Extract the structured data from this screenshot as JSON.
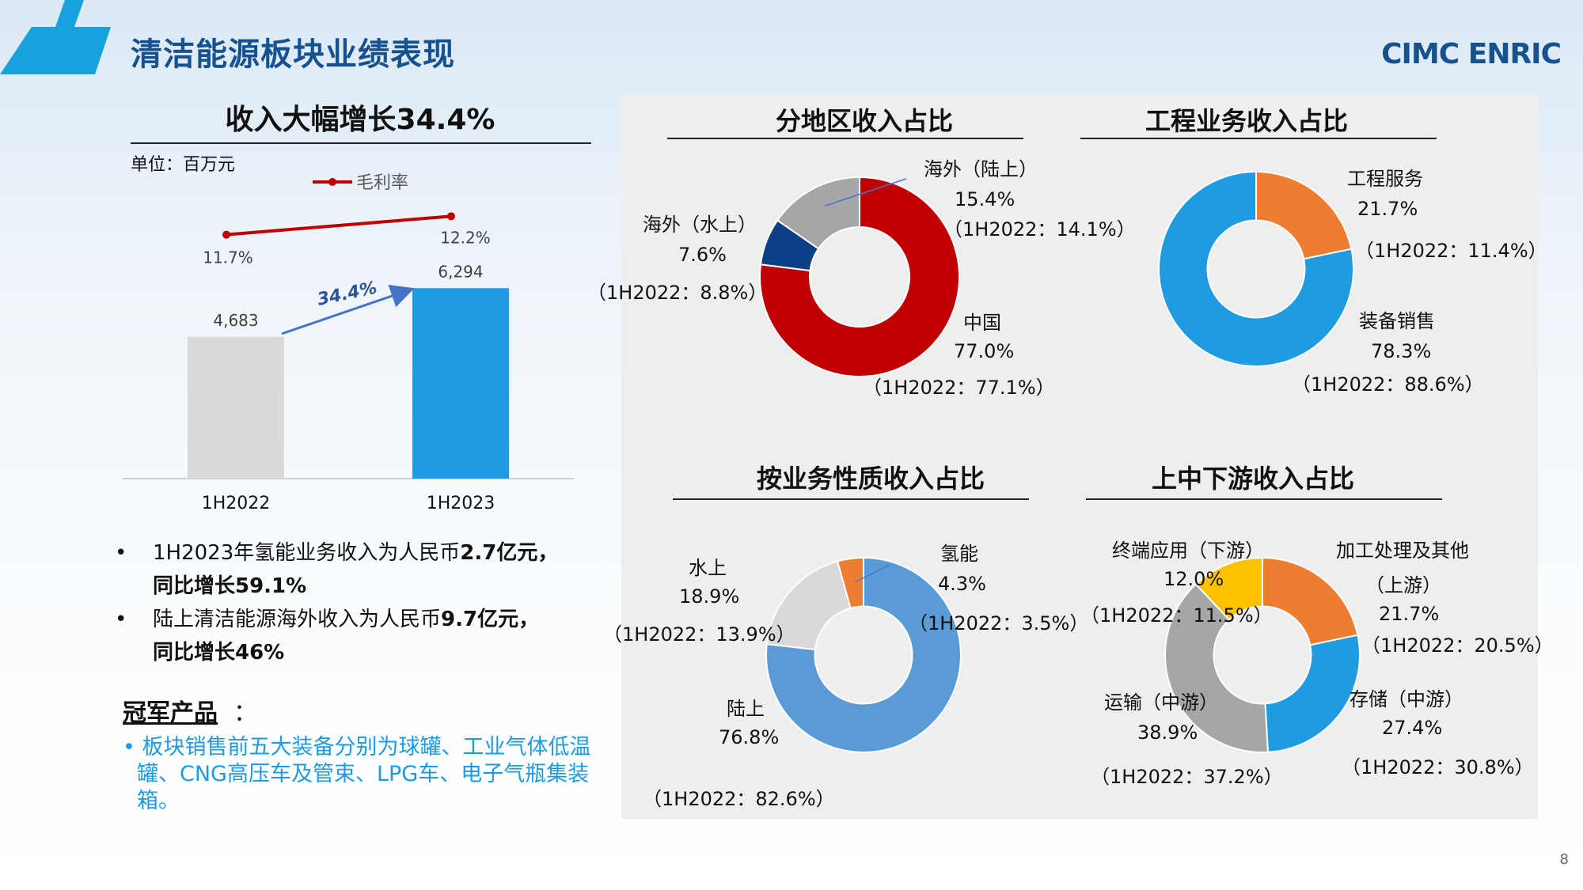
{
  "header": {
    "title": "清洁能源板块业绩表现",
    "brand": "CIMC ENRIC"
  },
  "left": {
    "headline": "收入大幅增长34.4%",
    "unit": "单位：百万元",
    "bullets": [
      {
        "text_a": "1H2023年氢能业务收入为人民币",
        "text_b": "2.7亿元，",
        "text_c": "同比增长59.1%"
      },
      {
        "text_a": "陆上清洁能源海外收入为人民币",
        "text_b": "9.7亿元，",
        "text_c": "同比增长46%"
      }
    ],
    "champion_title": "冠军产品",
    "champion_colon": "：",
    "champion_text": "• 板块销售前五大装备分别为球罐、工业气体低温罐、CNG高压车及管束、LPG车、电子气瓶集装箱。"
  },
  "chart_data": [
    {
      "type": "bar",
      "title": "收入大幅增长34.4%",
      "unit": "单位：百万元",
      "categories": [
        "1H2022",
        "1H2023"
      ],
      "series": [
        {
          "name": "",
          "values": [
            4683,
            6294
          ],
          "labels": [
            "4,683",
            "6,294"
          ],
          "colors": [
            "#d9d9d9",
            "#1f9be1"
          ]
        },
        {
          "name": "毛利率",
          "type": "line",
          "values": [
            11.7,
            12.2
          ],
          "labels": [
            "11.7%",
            "12.2%"
          ],
          "color": "#c00000"
        }
      ],
      "growth_arrow_label": "34.4%"
    },
    {
      "type": "pie",
      "title": "分地区收入占比",
      "slices": [
        {
          "name": "中国",
          "value": 77.0,
          "color": "#c00000",
          "label": "77.0%",
          "prior": "（1H2022：77.1%）"
        },
        {
          "name": "海外（水上）",
          "value": 7.6,
          "color": "#0b3f86",
          "label": "7.6%",
          "prior": "（1H2022：8.8%）"
        },
        {
          "name": "海外（陆上）",
          "value": 15.4,
          "color": "#a6a6a6",
          "label": "15.4%",
          "prior": "（1H2022：14.1%）"
        }
      ]
    },
    {
      "type": "pie",
      "title": "工程业务收入占比",
      "slices": [
        {
          "name": "工程服务",
          "value": 21.7,
          "color": "#ed7d31",
          "label": "21.7%",
          "prior": "（1H2022：11.4%）"
        },
        {
          "name": "装备销售",
          "value": 78.3,
          "color": "#1f9be1",
          "label": "78.3%",
          "prior": "（1H2022：88.6%）"
        }
      ]
    },
    {
      "type": "pie",
      "title": "按业务性质收入占比",
      "slices": [
        {
          "name": "氢能",
          "value": 4.3,
          "color": "#ed7d31",
          "label": "4.3%",
          "prior": "（1H2022：3.5%）"
        },
        {
          "name": "陆上",
          "value": 76.8,
          "color": "#5b9bd5",
          "label": "76.8%",
          "prior": "（1H2022：82.6%）"
        },
        {
          "name": "水上",
          "value": 18.9,
          "color": "#d9d9d9",
          "label": "18.9%",
          "prior": "（1H2022：13.9%）"
        }
      ]
    },
    {
      "type": "pie",
      "title": "上中下游收入占比",
      "slices": [
        {
          "name": "加工处理及其他（上游）",
          "value": 21.7,
          "color": "#ed7d31",
          "label": "21.7%",
          "prior": "（1H2022：20.5%）"
        },
        {
          "name": "存储（中游）",
          "value": 27.4,
          "color": "#1f9be1",
          "label": "27.4%",
          "prior": "（1H2022：30.8%）"
        },
        {
          "name": "运输（中游）",
          "value": 38.9,
          "color": "#a6a6a6",
          "label": "38.9%",
          "prior": "（1H2022：37.2%）"
        },
        {
          "name": "终端应用（下游）",
          "value": 12.0,
          "color": "#ffc000",
          "label": "12.0%",
          "prior": "（1H2022：11.5%）"
        }
      ]
    }
  ],
  "donut_labels": {
    "region": {
      "china_name": "中国",
      "china_pct": "77.0%",
      "china_prior": "（1H2022：77.1%）",
      "sea_name": "海外（水上）",
      "sea_pct": "7.6%",
      "sea_prior": "（1H2022：8.8%）",
      "land_name": "海外（陆上）",
      "land_pct": "15.4%",
      "land_prior": "（1H2022：14.1%）"
    },
    "engineering": {
      "svc_name": "工程服务",
      "svc_pct": "21.7%",
      "svc_prior": "（1H2022：11.4%）",
      "eq_name": "装备销售",
      "eq_pct": "78.3%",
      "eq_prior": "（1H2022：88.6%）"
    },
    "nature": {
      "h2_name": "氢能",
      "h2_pct": "4.3%",
      "h2_prior": "（1H2022：3.5%）",
      "land_name": "陆上",
      "land_pct": "76.8%",
      "land_prior": "（1H2022：82.6%）",
      "sea_name": "水上",
      "sea_pct": "18.9%",
      "sea_prior": "（1H2022：13.9%）"
    },
    "chain": {
      "up_name1": "加工处理及其他",
      "up_name2": "（上游）",
      "up_pct": "21.7%",
      "up_prior": "（1H2022：20.5%）",
      "store_name": "存储（中游）",
      "store_pct": "27.4%",
      "store_prior": "（1H2022：30.8%）",
      "trans_name": "运输（中游）",
      "trans_pct": "38.9%",
      "trans_prior": "（1H2022：37.2%）",
      "end_name": "终端应用（下游）",
      "end_pct": "12.0%",
      "end_prior": "（1H2022：11.5%）"
    }
  },
  "page_number": "8"
}
